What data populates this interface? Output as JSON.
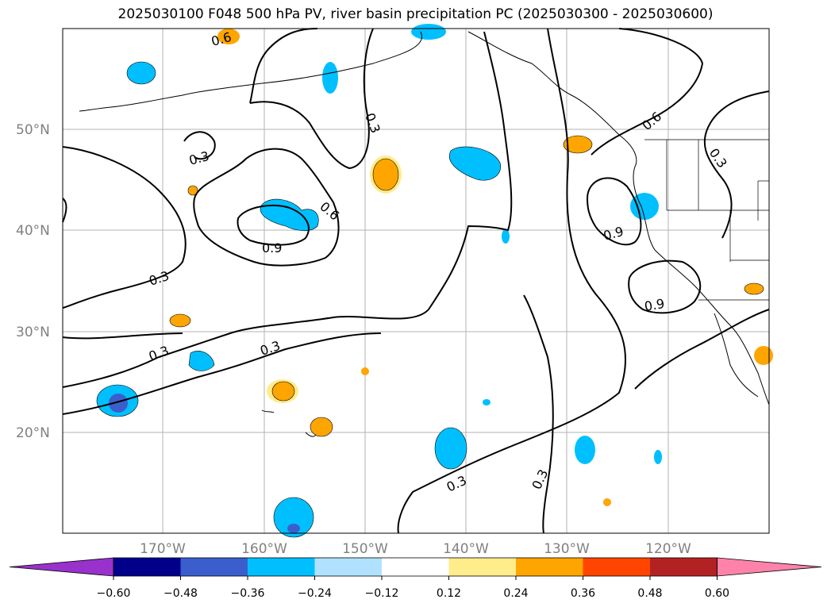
{
  "title": "2025030100 F048 500 hPa PV, river basin precipitation PC (2025030300 - 2025030600)",
  "lat_labels": [
    "50°N",
    "40°N",
    "30°N",
    "20°N"
  ],
  "lon_labels": [
    "170°W",
    "160°W",
    "150°W",
    "140°W",
    "130°W",
    "120°W"
  ],
  "contour_labels": {
    "c1": "0.6",
    "c2": "0.3",
    "c3": "0.3",
    "c4": "0.6",
    "c5": "0.9",
    "c6": "0.3",
    "c7": "0.3",
    "c8": "0.3",
    "c9": "0.3",
    "c10": "0.3",
    "c11": "0.6",
    "c12": "0.3",
    "c13": "0.9",
    "c14": "0.9"
  },
  "colorbar": {
    "ticks": [
      "−0.60",
      "−0.48",
      "−0.36",
      "−0.24",
      "−0.12",
      "0.12",
      "0.24",
      "0.36",
      "0.48",
      "0.60"
    ],
    "colors": [
      "#9932cc",
      "#00008b",
      "#3a5fcd",
      "#00bfff",
      "#b0e2ff",
      "#ffffff",
      "#ffec8b",
      "#ffa500",
      "#ff4500",
      "#b22222",
      "#ff82ab"
    ]
  }
}
